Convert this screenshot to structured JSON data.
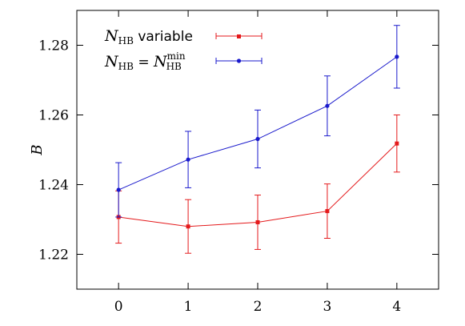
{
  "chart_data": {
    "type": "line",
    "title": "",
    "xlabel": "",
    "ylabel": "B",
    "x": [
      0,
      1,
      2,
      3,
      4
    ],
    "xlim": [
      -0.6,
      4.6
    ],
    "ylim": [
      1.21,
      1.29
    ],
    "xticks": [
      "0",
      "1",
      "2",
      "3",
      "4"
    ],
    "yticks": [
      "1.22",
      "1.24",
      "1.26",
      "1.28"
    ],
    "grid": false,
    "legend_position": "top-left",
    "series": [
      {
        "name_math": "N",
        "name_sub": "HB",
        "name_text": " variable",
        "color": "#e41a1c",
        "marker": "square",
        "values": [
          1.2307,
          1.228,
          1.2292,
          1.2324,
          1.2518
        ],
        "errors": [
          0.0075,
          0.0077,
          0.0078,
          0.0078,
          0.0082
        ]
      },
      {
        "name_math": "N",
        "name_sub": "HB",
        "name_text": " = ",
        "name_math2": "N",
        "name_sub2": "HB",
        "name_sup2": "min",
        "color": "#1a1acc",
        "marker": "circle",
        "values": [
          1.2385,
          1.2472,
          1.2531,
          1.2626,
          1.2767
        ],
        "errors": [
          0.0078,
          0.0081,
          0.0083,
          0.0086,
          0.009
        ]
      }
    ]
  }
}
